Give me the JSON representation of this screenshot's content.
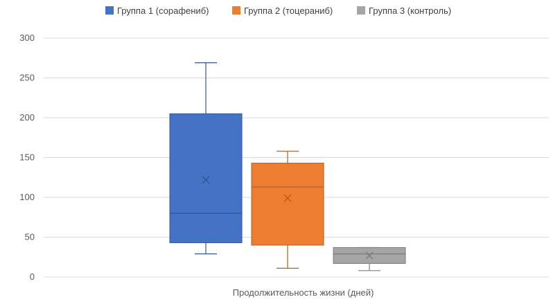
{
  "chart_data": {
    "type": "boxplot",
    "xlabel": "Продолжительность жизни (дней)",
    "ylim": [
      0,
      300
    ],
    "yticks": [
      0,
      50,
      100,
      150,
      200,
      250,
      300
    ],
    "grid": true,
    "legend_position": "top",
    "series": [
      {
        "name": "Группа 1 (сорафениб)",
        "color": "#4472C4",
        "min": 29,
        "q1": 43,
        "median": 80,
        "q3": 205,
        "max": 269,
        "mean": 122
      },
      {
        "name": "Группа 2 (тоцераниб)",
        "color": "#ED7D31",
        "min": 11,
        "q1": 40,
        "median": 113,
        "q3": 143,
        "max": 158,
        "mean": 99
      },
      {
        "name": "Группа 3 (контроль)",
        "color": "#A5A5A5",
        "min": 8,
        "q1": 17,
        "median": 29,
        "q3": 37,
        "max": 37,
        "mean": 27
      }
    ]
  }
}
